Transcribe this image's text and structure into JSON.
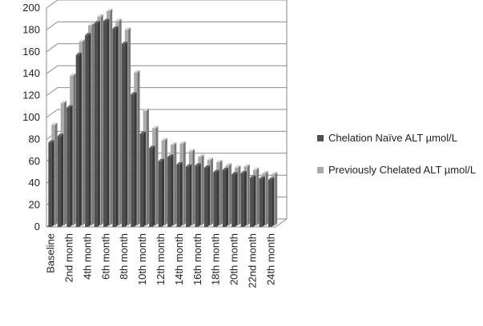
{
  "chart_data": {
    "type": "bar",
    "title": "",
    "xlabel": "",
    "ylabel": "",
    "ylim": [
      0,
      200
    ],
    "yticks": [
      0,
      20,
      40,
      60,
      80,
      100,
      120,
      140,
      160,
      180,
      200
    ],
    "grid": true,
    "legend_position": "right",
    "categories": [
      "Baseline",
      "1st month",
      "2nd month",
      "3rd month",
      "4th month",
      "5th month",
      "6th month",
      "7th month",
      "8th month",
      "9th month",
      "10th month",
      "11th month",
      "12th month",
      "13th month",
      "14th month",
      "15th month",
      "16th month",
      "17th month",
      "18th month",
      "19th month",
      "20th month",
      "21st month",
      "22nd month",
      "23rd month",
      "24th month"
    ],
    "shown_category_labels": [
      "Baseline",
      "2nd month",
      "4th month",
      "6th month",
      "8th month",
      "10th month",
      "12th month",
      "14th month",
      "16th month",
      "18th month",
      "20th month",
      "22nd month",
      "24th month"
    ],
    "series": [
      {
        "name": "Chelation Naïve ALT µmol/L",
        "color": "#505050",
        "values": [
          77,
          83,
          109,
          157,
          175,
          186,
          188,
          181,
          167,
          121,
          85,
          72,
          60,
          64,
          57,
          55,
          56,
          54,
          50,
          52,
          48,
          49,
          45,
          44,
          43
        ]
      },
      {
        "name": "Previously Chelated ALT µmol/L",
        "color": "#aaaaaa",
        "values": [
          92,
          112,
          137,
          168,
          183,
          191,
          196,
          187,
          179,
          140,
          105,
          89,
          78,
          74,
          75,
          68,
          63,
          60,
          58,
          55,
          53,
          54,
          51,
          48,
          47
        ]
      }
    ]
  }
}
